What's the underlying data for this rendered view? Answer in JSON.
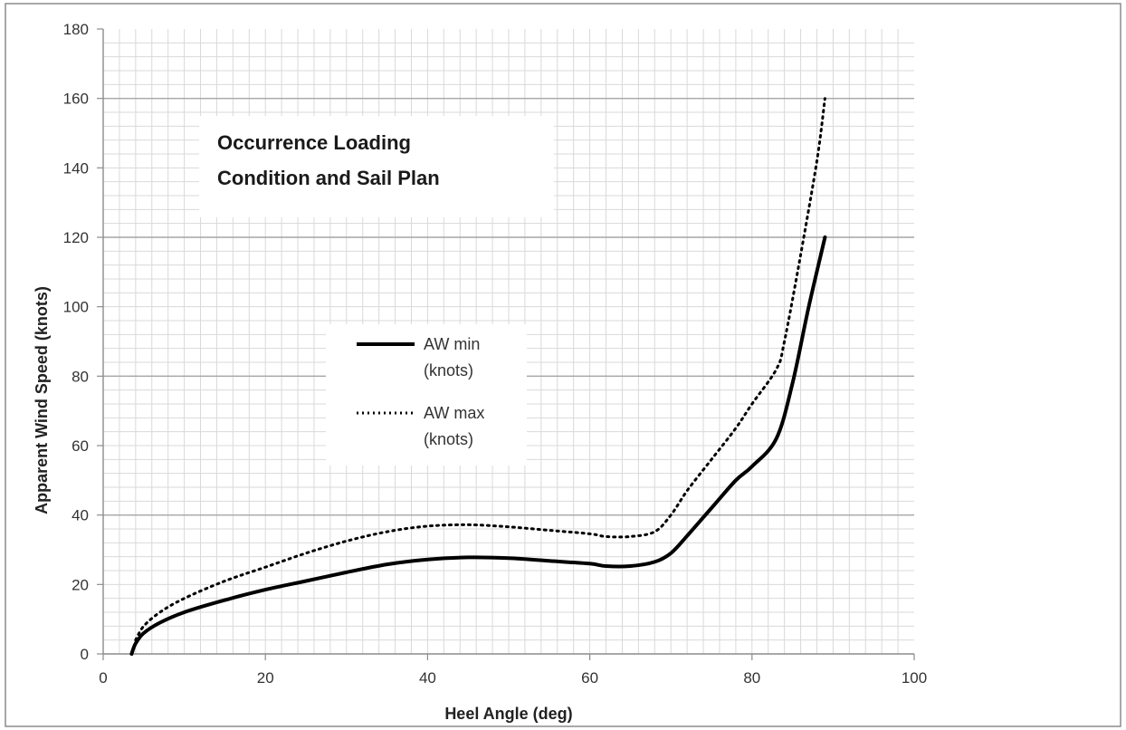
{
  "chart_data": {
    "type": "line",
    "xlabel": "Heel Angle (deg)",
    "ylabel": "Apparent Wind Speed (knots)",
    "xlim": [
      0,
      100
    ],
    "ylim": [
      0,
      180
    ],
    "x_ticks": [
      "0",
      "20",
      "40",
      "60",
      "80",
      "100"
    ],
    "y_ticks": [
      "0",
      "20",
      "40",
      "60",
      "80",
      "100",
      "120",
      "140",
      "160",
      "180"
    ],
    "x_tick_values": [
      0,
      20,
      40,
      60,
      80,
      100
    ],
    "y_tick_values": [
      0,
      20,
      40,
      60,
      80,
      100,
      120,
      140,
      160,
      180
    ],
    "x_minor_step": 2,
    "y_minor_step": 4,
    "y_major_grid_step": 40,
    "grid": true,
    "legend_position": "center",
    "annotation": {
      "line1": "Occurrence Loading",
      "line2": "Condition and Sail Plan"
    },
    "series": [
      {
        "name_line1": "AW min",
        "name_line2": "(knots)",
        "style": "solid",
        "color": "#000000",
        "x": [
          3.5,
          4,
          5,
          7,
          10,
          15,
          20,
          25,
          30,
          35,
          40,
          45,
          50,
          55,
          60,
          62,
          65,
          68,
          70,
          72,
          75,
          78,
          80,
          83,
          85,
          87,
          89
        ],
        "y": [
          0,
          3,
          6,
          9,
          12,
          15.5,
          18.5,
          21,
          23.5,
          25.8,
          27.2,
          27.8,
          27.6,
          26.8,
          26,
          25.3,
          25.3,
          26.5,
          29,
          34,
          42,
          50,
          54,
          62,
          78,
          100,
          120
        ]
      },
      {
        "name_line1": "AW max",
        "name_line2": "(knots)",
        "style": "dotted",
        "color": "#000000",
        "x": [
          4,
          5,
          7,
          10,
          15,
          20,
          25,
          30,
          35,
          40,
          45,
          50,
          55,
          60,
          62,
          65,
          68,
          70,
          72,
          75,
          78,
          80,
          83,
          84,
          86,
          88,
          89
        ],
        "y": [
          4,
          8,
          12,
          16,
          21,
          25,
          29,
          32.5,
          35.2,
          36.8,
          37.2,
          36.6,
          35.6,
          34.6,
          33.8,
          33.8,
          35.2,
          40,
          47,
          56,
          65,
          72,
          82,
          90,
          115,
          142,
          160
        ]
      }
    ]
  }
}
